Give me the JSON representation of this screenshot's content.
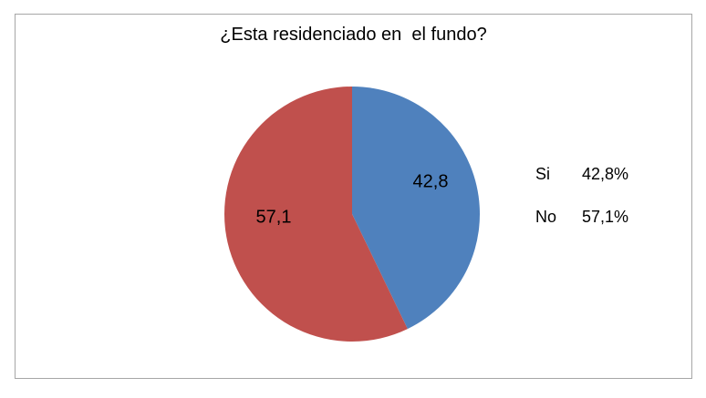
{
  "window": {
    "background": "#FFFFFF",
    "border_color": "#A6A6A6"
  },
  "chart_data": {
    "type": "pie",
    "title": "¿Esta residenciado en  el fundo?",
    "categories": [
      "Si",
      "No"
    ],
    "values": [
      42.8,
      57.1
    ],
    "slice_labels": [
      "42,8",
      "57,1"
    ],
    "colors": [
      "#4F81BD",
      "#C0504D"
    ],
    "start_angle_deg": 0,
    "direction": "clockwise",
    "grid": false,
    "legend_position": "right",
    "legend": {
      "entries": [
        {
          "label": "Si",
          "value": "42,8%"
        },
        {
          "label": "No",
          "value": "57,1%"
        }
      ]
    }
  }
}
